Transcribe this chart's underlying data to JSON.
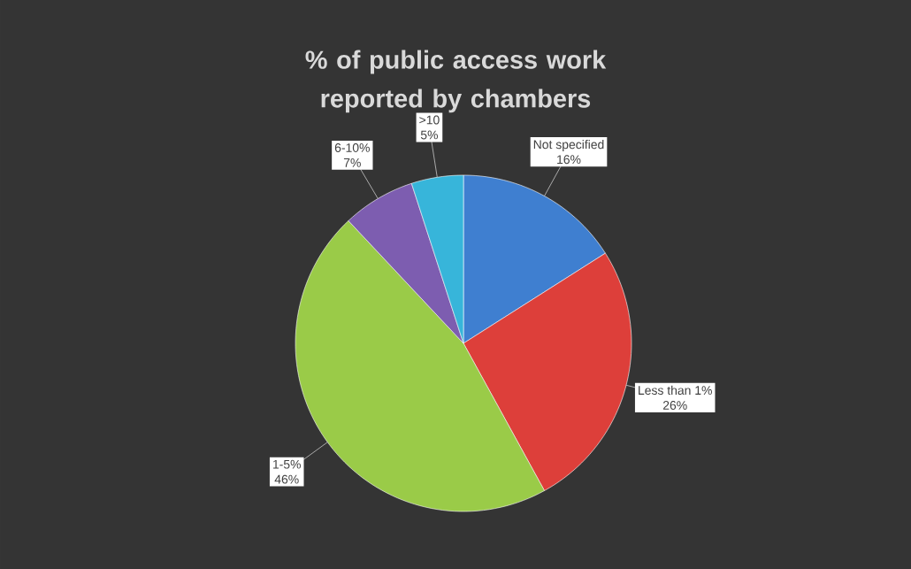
{
  "chart_data": {
    "type": "pie",
    "title": "% of public access work reported by chambers",
    "categories": [
      "Not specified",
      "Less than 1%",
      "1-5%",
      "6-10%",
      ">10"
    ],
    "values": [
      16,
      26,
      46,
      7,
      5
    ],
    "value_labels": [
      "16%",
      "26%",
      "46%",
      "7%",
      "5%"
    ],
    "colors": [
      "#3f7fd0",
      "#dd3f3a",
      "#9acb48",
      "#7d5db0",
      "#37b5da"
    ]
  }
}
